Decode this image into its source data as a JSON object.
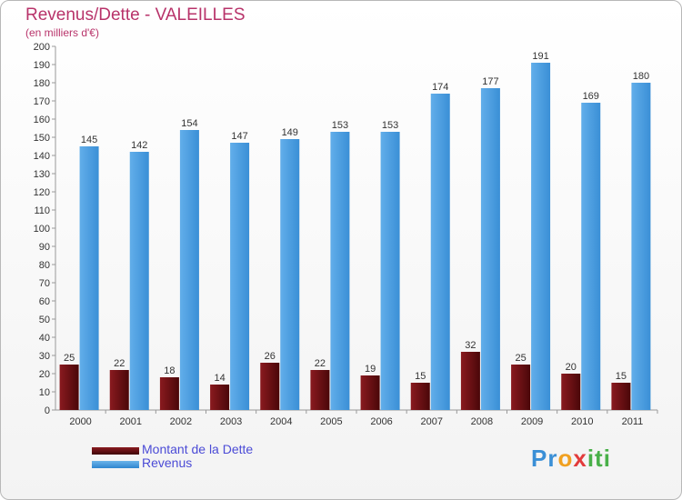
{
  "chart_data": {
    "type": "bar",
    "title": "Revenus/Dette - VALEILLES",
    "subtitle": "(en milliers d'€)",
    "categories": [
      "2000",
      "2001",
      "2002",
      "2003",
      "2004",
      "2005",
      "2006",
      "2007",
      "2008",
      "2009",
      "2010",
      "2011"
    ],
    "series": [
      {
        "name": "Montant de la Dette",
        "color": "#6b0f12",
        "values": [
          25,
          22,
          18,
          14,
          26,
          22,
          19,
          15,
          32,
          25,
          20,
          15
        ]
      },
      {
        "name": "Revenus",
        "color": "#4a9ee0",
        "values": [
          145,
          142,
          154,
          147,
          149,
          153,
          153,
          174,
          177,
          191,
          169,
          180
        ]
      }
    ],
    "ylim": [
      0,
      200
    ],
    "ytick_step": 10,
    "grid": false,
    "legend_position": "bottom-left"
  },
  "logo": {
    "parts": [
      "Pr",
      "o",
      "x",
      "iti"
    ]
  }
}
